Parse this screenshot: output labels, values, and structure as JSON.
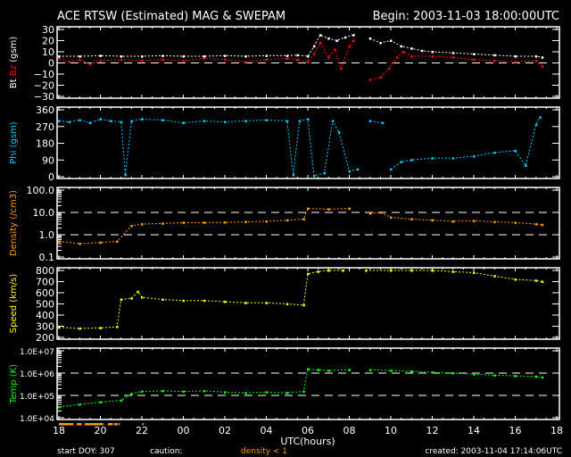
{
  "header": {
    "title": "ACE RTSW (Estimated) MAG & SWEPAM",
    "begin": "Begin: 2003-11-03 18:00:00UTC"
  },
  "footer": {
    "start_doy": "start DOY: 307",
    "caution_label": "caution:",
    "caution_value": "density < 1",
    "created": "created: 2003-11-04 17:14:06UTC"
  },
  "colors": {
    "bt": "#ffffff",
    "bz": "#ff0000",
    "phi": "#00c8ff",
    "density": "#ff9900",
    "speed": "#ffff00",
    "temp": "#00ff00",
    "caution": "#ff9900"
  },
  "chart_data": {
    "type": "scatter",
    "xlabel": "UTC(hours)",
    "xlim": [
      0,
      24
    ],
    "x_tick_labels": [
      "18",
      "20",
      "22",
      "00",
      "02",
      "04",
      "06",
      "08",
      "10",
      "12",
      "14",
      "16",
      "18"
    ],
    "caution_intervals": [
      [
        0,
        0.7
      ],
      [
        0.86,
        1.1
      ],
      [
        1.24,
        2.14
      ],
      [
        2.36,
        2.6
      ],
      [
        2.66,
        2.83
      ],
      [
        2.87,
        2.92
      ],
      [
        4.02,
        4.08
      ]
    ],
    "panels": [
      {
        "id": "mag",
        "ylabel_parts": [
          "Bt",
          "Bz",
          "(gsm)"
        ],
        "scale": "linear",
        "ylim": [
          -30,
          30
        ],
        "y_ticks": [
          -30,
          -20,
          -10,
          0,
          10,
          20,
          30
        ],
        "y_tick_labels": [
          "−30",
          "−20",
          "−10",
          "0",
          "10",
          "20",
          "30"
        ],
        "dashed": [
          0
        ],
        "series": [
          {
            "name": "Bt",
            "color_key": "bt",
            "points": [
              [
                0,
                6
              ],
              [
                1,
                6
              ],
              [
                2,
                6.5
              ],
              [
                3,
                6
              ],
              [
                4,
                6
              ],
              [
                5,
                6.5
              ],
              [
                6,
                6
              ],
              [
                7,
                6
              ],
              [
                8,
                6.5
              ],
              [
                9,
                6
              ],
              [
                10,
                6.5
              ],
              [
                11,
                6.5
              ],
              [
                11.5,
                7
              ],
              [
                12,
                6
              ],
              [
                12.3,
                15
              ],
              [
                12.6,
                25
              ],
              [
                13,
                22
              ],
              [
                13.4,
                20
              ],
              [
                13.8,
                23
              ],
              [
                14.2,
                25
              ],
              [
                null,
                null
              ],
              [
                15,
                22
              ],
              [
                15.5,
                18
              ],
              [
                16,
                20
              ],
              [
                16.5,
                15
              ],
              [
                17,
                13
              ],
              [
                17.5,
                11
              ],
              [
                18,
                10
              ],
              [
                19,
                9
              ],
              [
                20,
                8
              ],
              [
                21,
                7
              ],
              [
                22,
                6
              ],
              [
                23,
                6
              ],
              [
                23.3,
                5
              ]
            ]
          },
          {
            "name": "Bz",
            "color_key": "bz",
            "points": [
              [
                0,
                4
              ],
              [
                0.5,
                1
              ],
              [
                1,
                3
              ],
              [
                1.5,
                -1
              ],
              [
                2,
                2
              ],
              [
                3,
                3
              ],
              [
                4,
                2
              ],
              [
                5,
                3
              ],
              [
                6,
                2
              ],
              [
                7,
                4
              ],
              [
                8,
                3
              ],
              [
                9,
                1
              ],
              [
                10,
                3
              ],
              [
                11,
                4
              ],
              [
                11.5,
                3
              ],
              [
                12,
                1
              ],
              [
                12.3,
                8
              ],
              [
                12.6,
                18
              ],
              [
                13,
                5
              ],
              [
                13.3,
                12
              ],
              [
                13.6,
                -5
              ],
              [
                14,
                15
              ],
              [
                14.2,
                20
              ],
              [
                null,
                null
              ],
              [
                15,
                -15
              ],
              [
                15.5,
                -13
              ],
              [
                15.9,
                -5
              ],
              [
                16.1,
                0
              ],
              [
                16.3,
                5
              ],
              [
                16.6,
                10
              ],
              [
                17,
                6
              ],
              [
                18,
                6
              ],
              [
                19,
                5
              ],
              [
                20,
                3
              ],
              [
                21,
                2
              ],
              [
                22,
                1
              ],
              [
                23,
                2
              ],
              [
                23.3,
                -3
              ]
            ]
          }
        ]
      },
      {
        "id": "phi",
        "ylabel_parts": [
          "Phi (gsm)"
        ],
        "scale": "linear",
        "ylim": [
          0,
          360
        ],
        "y_ticks": [
          0,
          90,
          180,
          270,
          360
        ],
        "y_tick_labels": [
          "0",
          "90",
          "180",
          "270",
          "360"
        ],
        "dashed": [],
        "series": [
          {
            "name": "Phi",
            "color_key": "phi",
            "points": [
              [
                0,
                300
              ],
              [
                0.5,
                295
              ],
              [
                1,
                305
              ],
              [
                1.5,
                290
              ],
              [
                2,
                310
              ],
              [
                2.5,
                300
              ],
              [
                3,
                295
              ],
              [
                3.2,
                10
              ],
              [
                3.5,
                300
              ],
              [
                4,
                310
              ],
              [
                5,
                305
              ],
              [
                6,
                290
              ],
              [
                7,
                300
              ],
              [
                8,
                295
              ],
              [
                9,
                300
              ],
              [
                10,
                305
              ],
              [
                11,
                300
              ],
              [
                11.3,
                10
              ],
              [
                11.6,
                300
              ],
              [
                12,
                310
              ],
              [
                12.3,
                5
              ],
              [
                12.8,
                20
              ],
              [
                13.2,
                300
              ],
              [
                13.5,
                240
              ],
              [
                14,
                30
              ],
              [
                14.4,
                40
              ],
              [
                null,
                null
              ],
              [
                15,
                300
              ],
              [
                15.6,
                290
              ],
              [
                null,
                null
              ],
              [
                16,
                40
              ],
              [
                16.5,
                80
              ],
              [
                17,
                90
              ],
              [
                18,
                100
              ],
              [
                19,
                100
              ],
              [
                20,
                110
              ],
              [
                21,
                130
              ],
              [
                22,
                140
              ],
              [
                22.5,
                60
              ],
              [
                23,
                280
              ],
              [
                23.2,
                320
              ]
            ]
          }
        ]
      },
      {
        "id": "density",
        "ylabel_parts": [
          "Density (/cm3)"
        ],
        "scale": "log",
        "ylim": [
          0.1,
          100
        ],
        "y_ticks": [
          0.1,
          1,
          10,
          100
        ],
        "y_tick_labels": [
          "0.1",
          "1.0",
          "10.0",
          "100.0"
        ],
        "dashed": [
          1,
          10
        ],
        "series": [
          {
            "name": "Density",
            "color_key": "density",
            "points": [
              [
                0,
                0.5
              ],
              [
                1,
                0.4
              ],
              [
                2,
                0.45
              ],
              [
                2.8,
                0.5
              ],
              [
                3.5,
                2.5
              ],
              [
                4,
                3
              ],
              [
                5,
                3.2
              ],
              [
                6,
                3.5
              ],
              [
                7,
                3.5
              ],
              [
                8,
                3.6
              ],
              [
                9,
                3.8
              ],
              [
                10,
                4
              ],
              [
                11,
                4.5
              ],
              [
                11.8,
                5
              ],
              [
                12,
                15
              ],
              [
                13,
                14
              ],
              [
                14,
                15
              ],
              [
                null,
                null
              ],
              [
                15,
                9
              ],
              [
                15.5,
                10
              ],
              [
                16,
                6
              ],
              [
                17,
                5
              ],
              [
                18,
                4.5
              ],
              [
                19,
                4
              ],
              [
                20,
                4.2
              ],
              [
                21,
                3.8
              ],
              [
                22,
                3.5
              ],
              [
                23,
                3
              ],
              [
                23.3,
                2.8
              ]
            ]
          }
        ]
      },
      {
        "id": "speed",
        "ylabel_parts": [
          "Speed (km/s)"
        ],
        "scale": "linear",
        "ylim": [
          200,
          800
        ],
        "y_ticks": [
          200,
          300,
          400,
          500,
          600,
          700,
          800
        ],
        "y_tick_labels": [
          "200",
          "300",
          "400",
          "500",
          "600",
          "700",
          "800"
        ],
        "dashed": [],
        "series": [
          {
            "name": "Speed",
            "color_key": "speed",
            "points": [
              [
                0,
                290
              ],
              [
                1,
                280
              ],
              [
                2,
                285
              ],
              [
                2.8,
                295
              ],
              [
                3,
                540
              ],
              [
                3.5,
                550
              ],
              [
                3.8,
                610
              ],
              [
                4,
                560
              ],
              [
                5,
                540
              ],
              [
                6,
                530
              ],
              [
                7,
                530
              ],
              [
                8,
                520
              ],
              [
                9,
                510
              ],
              [
                10,
                510
              ],
              [
                11,
                500
              ],
              [
                11.8,
                490
              ],
              [
                12,
                770
              ],
              [
                12.5,
                790
              ],
              [
                13,
                800
              ],
              [
                13.7,
                800
              ],
              [
                null,
                null
              ],
              [
                14.8,
                800
              ],
              [
                16,
                800
              ],
              [
                17,
                800
              ],
              [
                18,
                800
              ],
              [
                19,
                790
              ],
              [
                20,
                780
              ],
              [
                21,
                750
              ],
              [
                22,
                720
              ],
              [
                23,
                710
              ],
              [
                23.3,
                700
              ]
            ]
          }
        ]
      },
      {
        "id": "temp",
        "ylabel_parts": [
          "Temp (K)"
        ],
        "scale": "log",
        "ylim": [
          10000,
          10000000
        ],
        "y_ticks": [
          10000,
          100000,
          1000000,
          10000000
        ],
        "y_tick_labels": [
          "1.0E+04",
          "1.0E+05",
          "1.0E+06",
          "1.0E+07"
        ],
        "dashed": [
          100000,
          1000000
        ],
        "series": [
          {
            "name": "Temp",
            "color_key": "temp",
            "points": [
              [
                0,
                30000
              ],
              [
                1,
                40000
              ],
              [
                2,
                50000
              ],
              [
                3,
                60000
              ],
              [
                3.5,
                120000
              ],
              [
                4,
                150000
              ],
              [
                5,
                160000
              ],
              [
                6,
                150000
              ],
              [
                7,
                160000
              ],
              [
                8,
                140000
              ],
              [
                9,
                130000
              ],
              [
                10,
                140000
              ],
              [
                11,
                130000
              ],
              [
                11.8,
                150000
              ],
              [
                12,
                1500000
              ],
              [
                12.5,
                1400000
              ],
              [
                13,
                1300000
              ],
              [
                14,
                1400000
              ],
              [
                null,
                null
              ],
              [
                15,
                1400000
              ],
              [
                16,
                1300000
              ],
              [
                17,
                1200000
              ],
              [
                18,
                1100000
              ],
              [
                19,
                1000000
              ],
              [
                20,
                900000
              ],
              [
                21,
                800000
              ],
              [
                22,
                750000
              ],
              [
                23,
                700000
              ],
              [
                23.3,
                650000
              ]
            ]
          }
        ]
      }
    ]
  }
}
